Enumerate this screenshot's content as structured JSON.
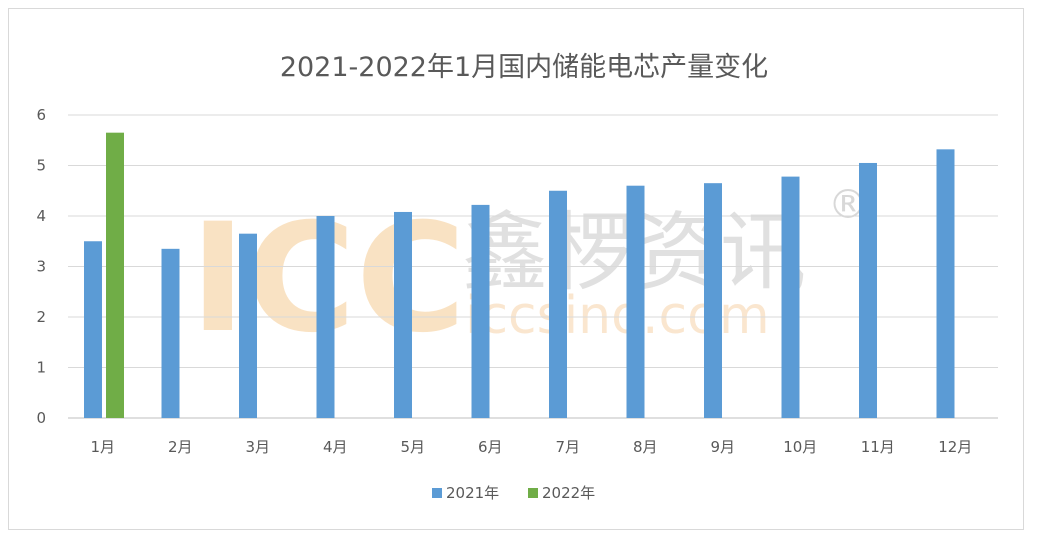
{
  "chart_data": {
    "type": "bar",
    "title": "2021-2022年1月国内储能电芯产量变化",
    "categories": [
      "1月",
      "2月",
      "3月",
      "4月",
      "5月",
      "6月",
      "7月",
      "8月",
      "9月",
      "10月",
      "11月",
      "12月"
    ],
    "series": [
      {
        "name": "2021年",
        "color": "#5b9bd5",
        "values": [
          3.5,
          3.35,
          3.65,
          4.0,
          4.08,
          4.22,
          4.5,
          4.6,
          4.65,
          4.78,
          5.05,
          5.32
        ]
      },
      {
        "name": "2022年",
        "color": "#70ad47",
        "values": [
          5.65,
          null,
          null,
          null,
          null,
          null,
          null,
          null,
          null,
          null,
          null,
          null
        ]
      }
    ],
    "ylim": [
      0,
      6
    ],
    "yticks": [
      0,
      1,
      2,
      3,
      4,
      5,
      6
    ],
    "grid": true,
    "legend_position": "bottom",
    "xlabel": "",
    "ylabel": ""
  },
  "watermark": {
    "logo": "ICC",
    "brand": "鑫椤资讯",
    "url": "iccsino.com",
    "registered": "®"
  }
}
